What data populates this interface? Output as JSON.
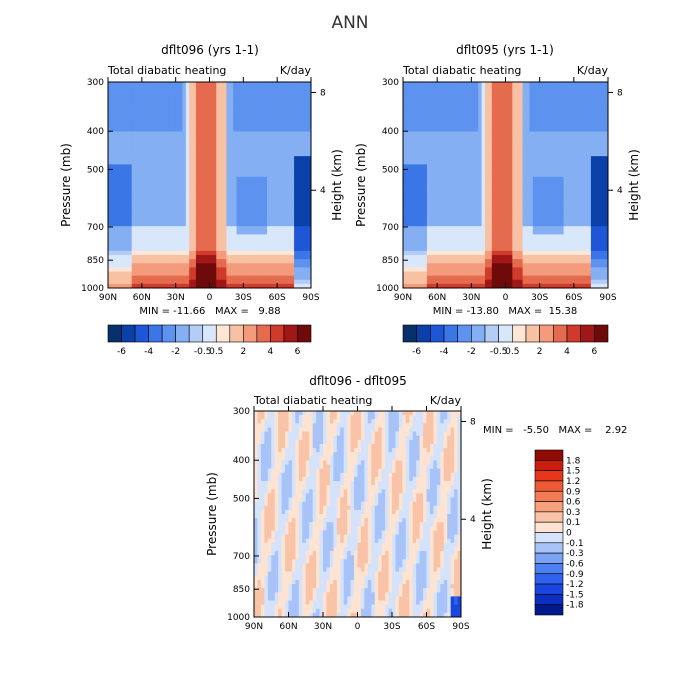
{
  "figure_title": "ANN",
  "colors": {
    "upper_scale": [
      "#08306b",
      "#0a40a8",
      "#1e56d8",
      "#3b76e6",
      "#5d93ef",
      "#85aff3",
      "#b3cdf6",
      "#d9e7fb",
      "#fde6d6",
      "#f9c1a4",
      "#f39b7a",
      "#e56b4f",
      "#cf3a2a",
      "#a11616",
      "#6e0a0a"
    ],
    "diff_scale": [
      "#001a8c",
      "#0a2fc2",
      "#1a46e0",
      "#2f62ee",
      "#4f80f3",
      "#7aa3f6",
      "#a7c3f8",
      "#d4e3fb",
      "#fde3d2",
      "#f9c3a8",
      "#f6a07c",
      "#f27a55",
      "#ee5a36",
      "#e5381b",
      "#c91d0d",
      "#8e0b06"
    ]
  },
  "chart_data": [
    {
      "type": "heatmap",
      "case_title": "dflt096 (yrs 1-1)",
      "subtitle_left": "Total diabatic heating",
      "subtitle_right": "K/day",
      "ylabel": "Pressure (mb)",
      "ylabel_right": "Height (km)",
      "x_ticks": [
        "90N",
        "60N",
        "30N",
        "0",
        "30S",
        "60S",
        "90S"
      ],
      "x_values": [
        90,
        60,
        30,
        0,
        -30,
        -60,
        -90
      ],
      "y_ticks": [
        "300",
        "400",
        "500",
        "700",
        "850",
        "1000"
      ],
      "y_values": [
        300,
        400,
        500,
        700,
        850,
        1000
      ],
      "y_scale": "log",
      "height_ticks": [
        "8",
        "4"
      ],
      "height_values": [
        8,
        4
      ],
      "stats_text": "MIN = -11.66   MAX =   9.88",
      "min": -11.66,
      "max": 9.88,
      "colorbar_labels": [
        "-6",
        "-4",
        "-2",
        "-0.5",
        "0.5",
        "2",
        "4",
        "6"
      ],
      "colorbar_levels": [
        -6,
        -5,
        -4,
        -3,
        -2,
        -1,
        -0.5,
        0.5,
        1,
        2,
        3,
        4,
        5,
        6
      ]
    },
    {
      "type": "heatmap",
      "case_title": "dflt095 (yrs 1-1)",
      "subtitle_left": "Total diabatic heating",
      "subtitle_right": "K/day",
      "ylabel": "Pressure (mb)",
      "ylabel_right": "Height (km)",
      "x_ticks": [
        "90N",
        "60N",
        "30N",
        "0",
        "30S",
        "60S",
        "90S"
      ],
      "x_values": [
        90,
        60,
        30,
        0,
        -30,
        -60,
        -90
      ],
      "y_ticks": [
        "300",
        "400",
        "500",
        "700",
        "850",
        "1000"
      ],
      "y_values": [
        300,
        400,
        500,
        700,
        850,
        1000
      ],
      "y_scale": "log",
      "height_ticks": [
        "8",
        "4"
      ],
      "height_values": [
        8,
        4
      ],
      "stats_text": "MIN = -13.80   MAX =  15.38",
      "min": -13.8,
      "max": 15.38,
      "colorbar_labels": [
        "-6",
        "-4",
        "-2",
        "-0.5",
        "0.5",
        "2",
        "4",
        "6"
      ],
      "colorbar_levels": [
        -6,
        -5,
        -4,
        -3,
        -2,
        -1,
        -0.5,
        0.5,
        1,
        2,
        3,
        4,
        5,
        6
      ]
    },
    {
      "type": "heatmap",
      "case_title": "dflt096 - dflt095",
      "subtitle_left": "Total diabatic heating",
      "subtitle_right": "K/day",
      "ylabel": "Pressure (mb)",
      "ylabel_right": "Height (km)",
      "x_ticks": [
        "90N",
        "60N",
        "30N",
        "0",
        "30S",
        "60S",
        "90S"
      ],
      "x_values": [
        90,
        60,
        30,
        0,
        -30,
        -60,
        -90
      ],
      "y_ticks": [
        "300",
        "400",
        "500",
        "700",
        "850",
        "1000"
      ],
      "y_values": [
        300,
        400,
        500,
        700,
        850,
        1000
      ],
      "y_scale": "log",
      "height_ticks": [
        "8",
        "4"
      ],
      "height_values": [
        8,
        4
      ],
      "stats_text": "MIN =   -5.50   MAX =    2.92",
      "min": -5.5,
      "max": 2.92,
      "colorbar_labels": [
        "1.8",
        "1.5",
        "1.2",
        "0.9",
        "0.6",
        "0.3",
        "0.1",
        "0",
        "-0.1",
        "-0.3",
        "-0.6",
        "-0.9",
        "-1.2",
        "-1.5",
        "-1.8"
      ],
      "colorbar_levels": [
        1.8,
        1.5,
        1.2,
        0.9,
        0.6,
        0.3,
        0.1,
        0,
        -0.1,
        -0.3,
        -0.6,
        -0.9,
        -1.2,
        -1.5,
        -1.8
      ]
    }
  ]
}
